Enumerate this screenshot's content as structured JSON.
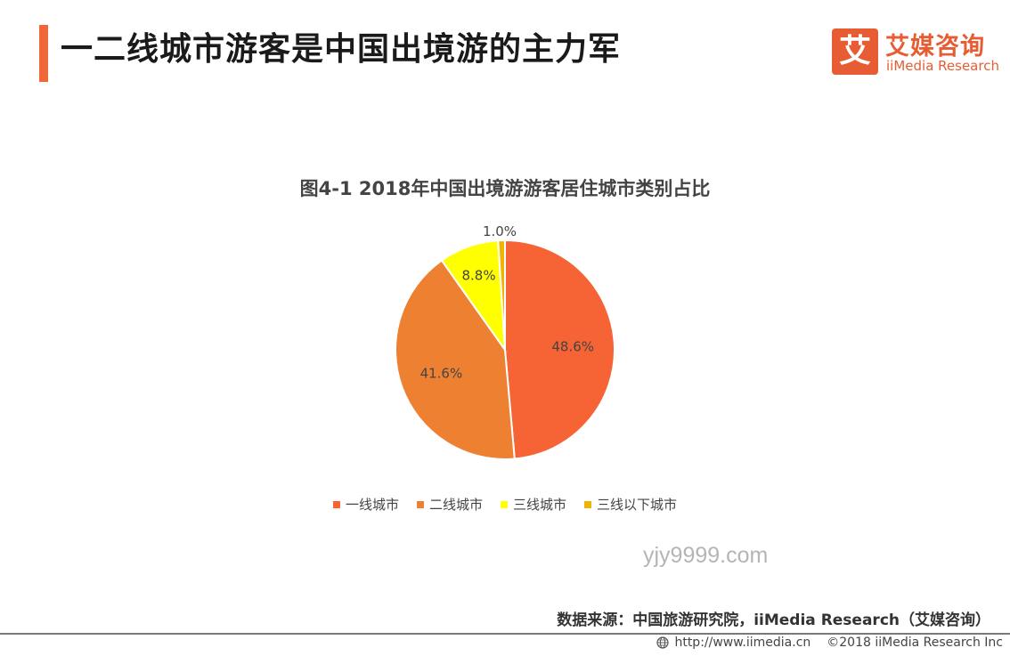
{
  "header": {
    "title": "一二线城市游客是中国出境游的主力军"
  },
  "logo": {
    "mark": "艾",
    "name_cn": "艾媒咨询",
    "name_en": "iiMedia Research"
  },
  "chart_data": {
    "type": "pie",
    "title": "图4-1 2018年中国出境游游客居住城市类别占比",
    "categories": [
      "一线城市",
      "二线城市",
      "三线城市",
      "三线以下城市"
    ],
    "values": [
      48.6,
      41.6,
      8.8,
      1.0
    ],
    "labels": [
      "48.6%",
      "41.6%",
      "8.8%",
      "1.0%"
    ],
    "colors": [
      "#f66334",
      "#ee8032",
      "#ffff00",
      "#f0b400"
    ],
    "legend_position": "bottom",
    "start_angle": "12 o'clock, clockwise"
  },
  "watermark": "yjy9999.com",
  "source": "数据来源：中国旅游研究院，iiMedia Research（艾媒咨询）",
  "footer": {
    "url": "http://www.iimedia.cn",
    "copyright": "©2018  iiMedia Research  Inc"
  }
}
